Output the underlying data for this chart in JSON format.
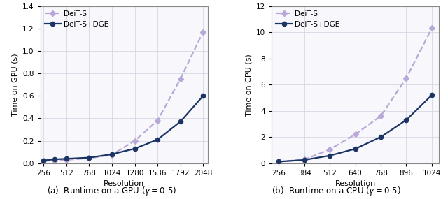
{
  "gpu": {
    "x": [
      256,
      384,
      512,
      768,
      1024,
      1280,
      1536,
      1792,
      2048
    ],
    "deit_s": [
      0.02,
      0.025,
      0.03,
      0.045,
      0.075,
      0.2,
      0.38,
      0.75,
      1.17
    ],
    "deit_dge": [
      0.025,
      0.035,
      0.04,
      0.05,
      0.08,
      0.13,
      0.21,
      0.37,
      0.6
    ],
    "xticks": [
      256,
      512,
      768,
      1024,
      1280,
      1536,
      1792,
      2048
    ],
    "xlim": [
      220,
      2100
    ],
    "ylim": [
      0,
      1.4
    ],
    "yticks": [
      0.0,
      0.2,
      0.4,
      0.6,
      0.8,
      1.0,
      1.2,
      1.4
    ],
    "xlabel": "Resolution",
    "ylabel": "Time on GPU (s)",
    "caption": "(a)  Runtime on a GPU ($\\gamma = 0.5$)"
  },
  "cpu": {
    "x": [
      256,
      384,
      512,
      640,
      768,
      896,
      1024
    ],
    "deit_s": [
      0.12,
      0.28,
      1.05,
      2.2,
      3.6,
      6.5,
      10.3
    ],
    "deit_dge": [
      0.12,
      0.25,
      0.58,
      1.1,
      2.0,
      3.3,
      5.2
    ],
    "xticks": [
      256,
      384,
      512,
      640,
      768,
      896,
      1024
    ],
    "xlim": [
      220,
      1060
    ],
    "ylim": [
      0,
      12
    ],
    "yticks": [
      0,
      2,
      4,
      6,
      8,
      10,
      12
    ],
    "xlabel": "Resolution",
    "ylabel": "Time on CPU (s)",
    "caption": "(b)  Runtime on a CPU ($\\gamma = 0.5$)"
  },
  "deit_s_label": "DeiT-S",
  "deit_dge_label": "DeiT-S+DGE",
  "deit_s_color": "#b8a8d8",
  "deit_dge_color": "#1c3464",
  "line_width": 1.6,
  "marker_size": 4.5
}
